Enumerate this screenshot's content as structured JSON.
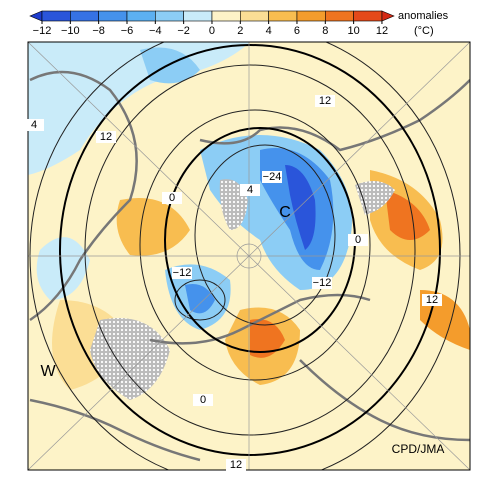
{
  "colorbar": {
    "ticks": [
      "−12",
      "−10",
      "−8",
      "−6",
      "−4",
      "−2",
      "0",
      "2",
      "4",
      "6",
      "8",
      "10",
      "12"
    ],
    "colors": [
      "#1d3ccc",
      "#2a55da",
      "#3672e4",
      "#4592ec",
      "#5cb0f1",
      "#8ccdf5",
      "#c9ebf9",
      "#fdf3c8",
      "#fbde95",
      "#f8bd50",
      "#f49c2c",
      "#ef7420",
      "#e4491a",
      "#d42a14"
    ],
    "label": "anomalies",
    "unit": "(°C)"
  },
  "map": {
    "contour_labels": [
      "4",
      "12",
      "12",
      "0",
      "4",
      "−24",
      "−12",
      "−12",
      "0",
      "12",
      "0",
      "12"
    ],
    "letters": [
      "W",
      "C"
    ],
    "credit": "CPD/JMA"
  }
}
